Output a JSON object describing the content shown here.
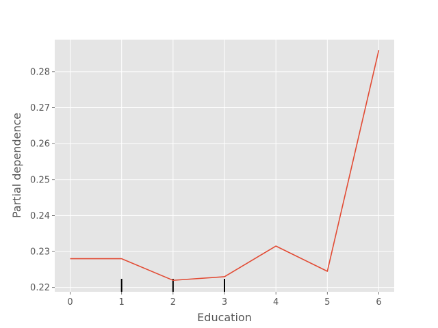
{
  "chart_data": {
    "type": "line",
    "title": "",
    "xlabel": "Education",
    "ylabel": "Partial dependence",
    "xlim": [
      -0.3,
      6.3
    ],
    "ylim": [
      0.2188,
      0.2889
    ],
    "x_ticks": [
      0,
      1,
      2,
      3,
      4,
      5,
      6
    ],
    "y_ticks": [
      0.22,
      0.23,
      0.24,
      0.25,
      0.26,
      0.27,
      0.28
    ],
    "grid": true,
    "series": [
      {
        "color": "#e24a33",
        "x": [
          0,
          1,
          2,
          3,
          4,
          5,
          6
        ],
        "y": [
          0.228,
          0.228,
          0.222,
          0.223,
          0.2315,
          0.2245,
          0.286
        ]
      }
    ],
    "rug_x": [
      1,
      2,
      3
    ],
    "background_color": "#e5e5e5",
    "grid_color": "#ffffff"
  }
}
